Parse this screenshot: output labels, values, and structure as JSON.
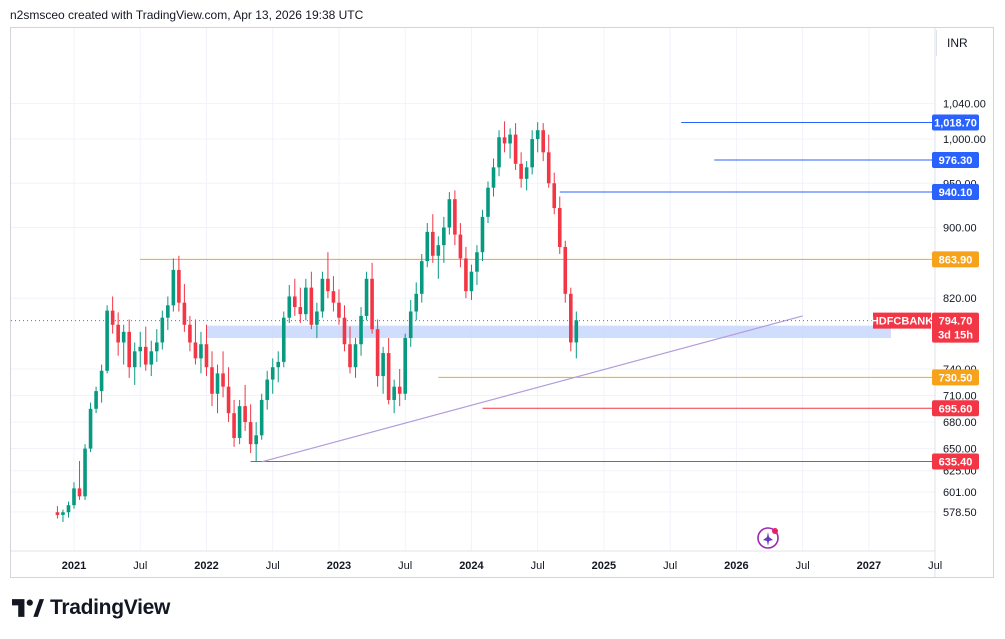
{
  "header": {
    "text": "n2smsceo created with TradingView.com, Apr 13, 2026 19:38 UTC"
  },
  "currency": "INR",
  "footer": {
    "brand": "TradingView"
  },
  "chart_data": {
    "type": "candlestick",
    "symbol": "HDFCBANK",
    "last_price": 794.7,
    "countdown": "3d 15h",
    "y_range": [
      562,
      1055
    ],
    "y_ticks": [
      {
        "v": 1040,
        "t": "1,040.00"
      },
      {
        "v": 1000,
        "t": "1,000.00"
      },
      {
        "v": 950,
        "t": "950.00"
      },
      {
        "v": 900,
        "t": "900.00"
      },
      {
        "v": 820,
        "t": "820.00"
      },
      {
        "v": 740,
        "t": "740.00"
      },
      {
        "v": 710,
        "t": "710.00"
      },
      {
        "v": 680,
        "t": "680.00"
      },
      {
        "v": 650,
        "t": "650.00"
      },
      {
        "v": 625,
        "t": "625.00"
      },
      {
        "v": 601,
        "t": "601.00"
      },
      {
        "v": 578.5,
        "t": "578.50"
      }
    ],
    "x_ticks": [
      "2021",
      "Jul",
      "2022",
      "Jul",
      "2023",
      "Jul",
      "2024",
      "Jul",
      "2025",
      "Jul",
      "2026",
      "Jul",
      "2027",
      "Jul"
    ],
    "x_tick_bold": [
      true,
      false,
      true,
      false,
      true,
      false,
      true,
      false,
      true,
      false,
      true,
      false,
      true,
      false
    ],
    "horizontal_levels": [
      {
        "value": 1018.7,
        "label": "1,018.70",
        "color": "#2962ff",
        "from": "2025-08"
      },
      {
        "value": 976.3,
        "label": "976.30",
        "color": "#2962ff",
        "from": "2025-11"
      },
      {
        "value": 940.1,
        "label": "940.10",
        "color": "#2962ff",
        "from": "2024-09"
      },
      {
        "value": 863.9,
        "label": "863.90",
        "color": "#f7a21b",
        "from": "2021-07"
      },
      {
        "value": 730.5,
        "label": "730.50",
        "color": "#f7a21b",
        "from": "2023-10"
      },
      {
        "value": 695.6,
        "label": "695.60",
        "color": "#f23645",
        "from": "2024-02"
      },
      {
        "value": 635.4,
        "label": "635.40",
        "color": "#f23645",
        "from": "2022-05"
      }
    ],
    "support_zone": {
      "top": 789,
      "bottom": 775,
      "from": "2022-01",
      "to": "2027-03",
      "color": "#c8d7fb"
    },
    "trendline": {
      "x1": "2022-06",
      "y1": 635,
      "x2": "2026-07",
      "y2": 800,
      "color": "#b39ddb"
    },
    "candles": [
      {
        "o": 578,
        "h": 585,
        "l": 571,
        "c": 575
      },
      {
        "o": 575,
        "h": 581,
        "l": 567,
        "c": 578
      },
      {
        "o": 578,
        "h": 590,
        "l": 572,
        "c": 586
      },
      {
        "o": 586,
        "h": 612,
        "l": 582,
        "c": 605
      },
      {
        "o": 605,
        "h": 636,
        "l": 592,
        "c": 596
      },
      {
        "o": 596,
        "h": 655,
        "l": 592,
        "c": 650
      },
      {
        "o": 650,
        "h": 702,
        "l": 646,
        "c": 695
      },
      {
        "o": 695,
        "h": 720,
        "l": 690,
        "c": 715
      },
      {
        "o": 715,
        "h": 745,
        "l": 702,
        "c": 738
      },
      {
        "o": 738,
        "h": 812,
        "l": 735,
        "c": 806
      },
      {
        "o": 806,
        "h": 822,
        "l": 780,
        "c": 790
      },
      {
        "o": 790,
        "h": 804,
        "l": 755,
        "c": 770
      },
      {
        "o": 770,
        "h": 790,
        "l": 745,
        "c": 782
      },
      {
        "o": 782,
        "h": 796,
        "l": 730,
        "c": 742
      },
      {
        "o": 742,
        "h": 770,
        "l": 722,
        "c": 760
      },
      {
        "o": 760,
        "h": 782,
        "l": 742,
        "c": 765
      },
      {
        "o": 765,
        "h": 788,
        "l": 738,
        "c": 745
      },
      {
        "o": 745,
        "h": 772,
        "l": 732,
        "c": 760
      },
      {
        "o": 760,
        "h": 785,
        "l": 748,
        "c": 770
      },
      {
        "o": 770,
        "h": 806,
        "l": 762,
        "c": 798
      },
      {
        "o": 798,
        "h": 822,
        "l": 784,
        "c": 812
      },
      {
        "o": 812,
        "h": 865,
        "l": 805,
        "c": 852
      },
      {
        "o": 852,
        "h": 868,
        "l": 805,
        "c": 815
      },
      {
        "o": 815,
        "h": 836,
        "l": 782,
        "c": 790
      },
      {
        "o": 790,
        "h": 800,
        "l": 760,
        "c": 770
      },
      {
        "o": 770,
        "h": 796,
        "l": 745,
        "c": 752
      },
      {
        "o": 752,
        "h": 782,
        "l": 735,
        "c": 768
      },
      {
        "o": 768,
        "h": 790,
        "l": 732,
        "c": 742
      },
      {
        "o": 742,
        "h": 760,
        "l": 698,
        "c": 712
      },
      {
        "o": 712,
        "h": 745,
        "l": 690,
        "c": 735
      },
      {
        "o": 735,
        "h": 760,
        "l": 708,
        "c": 720
      },
      {
        "o": 720,
        "h": 742,
        "l": 680,
        "c": 690
      },
      {
        "o": 690,
        "h": 705,
        "l": 652,
        "c": 662
      },
      {
        "o": 662,
        "h": 705,
        "l": 655,
        "c": 698
      },
      {
        "o": 698,
        "h": 722,
        "l": 670,
        "c": 680
      },
      {
        "o": 680,
        "h": 700,
        "l": 645,
        "c": 655
      },
      {
        "o": 655,
        "h": 680,
        "l": 636,
        "c": 665
      },
      {
        "o": 665,
        "h": 712,
        "l": 660,
        "c": 705
      },
      {
        "o": 705,
        "h": 738,
        "l": 694,
        "c": 728
      },
      {
        "o": 728,
        "h": 752,
        "l": 712,
        "c": 742
      },
      {
        "o": 742,
        "h": 760,
        "l": 725,
        "c": 748
      },
      {
        "o": 748,
        "h": 805,
        "l": 742,
        "c": 798
      },
      {
        "o": 798,
        "h": 835,
        "l": 792,
        "c": 822
      },
      {
        "o": 822,
        "h": 842,
        "l": 800,
        "c": 810
      },
      {
        "o": 810,
        "h": 832,
        "l": 792,
        "c": 802
      },
      {
        "o": 802,
        "h": 842,
        "l": 795,
        "c": 832
      },
      {
        "o": 832,
        "h": 850,
        "l": 785,
        "c": 790
      },
      {
        "o": 790,
        "h": 815,
        "l": 775,
        "c": 805
      },
      {
        "o": 805,
        "h": 850,
        "l": 798,
        "c": 842
      },
      {
        "o": 842,
        "h": 872,
        "l": 820,
        "c": 828
      },
      {
        "o": 828,
        "h": 845,
        "l": 805,
        "c": 815
      },
      {
        "o": 815,
        "h": 830,
        "l": 790,
        "c": 798
      },
      {
        "o": 798,
        "h": 812,
        "l": 760,
        "c": 768
      },
      {
        "o": 768,
        "h": 788,
        "l": 735,
        "c": 742
      },
      {
        "o": 742,
        "h": 775,
        "l": 730,
        "c": 768
      },
      {
        "o": 768,
        "h": 810,
        "l": 755,
        "c": 800
      },
      {
        "o": 800,
        "h": 850,
        "l": 795,
        "c": 842
      },
      {
        "o": 842,
        "h": 860,
        "l": 780,
        "c": 785
      },
      {
        "o": 785,
        "h": 796,
        "l": 720,
        "c": 732
      },
      {
        "o": 732,
        "h": 765,
        "l": 712,
        "c": 758
      },
      {
        "o": 758,
        "h": 775,
        "l": 700,
        "c": 705
      },
      {
        "o": 705,
        "h": 728,
        "l": 690,
        "c": 720
      },
      {
        "o": 720,
        "h": 740,
        "l": 698,
        "c": 712
      },
      {
        "o": 712,
        "h": 780,
        "l": 705,
        "c": 775
      },
      {
        "o": 775,
        "h": 818,
        "l": 765,
        "c": 805
      },
      {
        "o": 805,
        "h": 838,
        "l": 795,
        "c": 825
      },
      {
        "o": 825,
        "h": 870,
        "l": 815,
        "c": 862
      },
      {
        "o": 862,
        "h": 905,
        "l": 855,
        "c": 895
      },
      {
        "o": 895,
        "h": 915,
        "l": 860,
        "c": 868
      },
      {
        "o": 868,
        "h": 890,
        "l": 842,
        "c": 880
      },
      {
        "o": 880,
        "h": 912,
        "l": 860,
        "c": 900
      },
      {
        "o": 900,
        "h": 940,
        "l": 892,
        "c": 932
      },
      {
        "o": 932,
        "h": 942,
        "l": 880,
        "c": 892
      },
      {
        "o": 892,
        "h": 905,
        "l": 855,
        "c": 865
      },
      {
        "o": 865,
        "h": 878,
        "l": 820,
        "c": 828
      },
      {
        "o": 828,
        "h": 858,
        "l": 818,
        "c": 850
      },
      {
        "o": 850,
        "h": 880,
        "l": 835,
        "c": 872
      },
      {
        "o": 872,
        "h": 920,
        "l": 862,
        "c": 912
      },
      {
        "o": 912,
        "h": 952,
        "l": 905,
        "c": 945
      },
      {
        "o": 945,
        "h": 978,
        "l": 935,
        "c": 968
      },
      {
        "o": 968,
        "h": 1010,
        "l": 958,
        "c": 1002
      },
      {
        "o": 1002,
        "h": 1020,
        "l": 985,
        "c": 995
      },
      {
        "o": 995,
        "h": 1012,
        "l": 978,
        "c": 1005
      },
      {
        "o": 1005,
        "h": 1018,
        "l": 965,
        "c": 972
      },
      {
        "o": 972,
        "h": 985,
        "l": 945,
        "c": 955
      },
      {
        "o": 955,
        "h": 975,
        "l": 942,
        "c": 968
      },
      {
        "o": 968,
        "h": 1010,
        "l": 960,
        "c": 1000
      },
      {
        "o": 1000,
        "h": 1019,
        "l": 985,
        "c": 1010
      },
      {
        "o": 1010,
        "h": 1018,
        "l": 975,
        "c": 985
      },
      {
        "o": 985,
        "h": 1005,
        "l": 945,
        "c": 950
      },
      {
        "o": 950,
        "h": 962,
        "l": 915,
        "c": 922
      },
      {
        "o": 922,
        "h": 935,
        "l": 870,
        "c": 878
      },
      {
        "o": 878,
        "h": 885,
        "l": 815,
        "c": 825
      },
      {
        "o": 825,
        "h": 832,
        "l": 760,
        "c": 770
      },
      {
        "o": 770,
        "h": 805,
        "l": 752,
        "c": 795
      }
    ]
  }
}
